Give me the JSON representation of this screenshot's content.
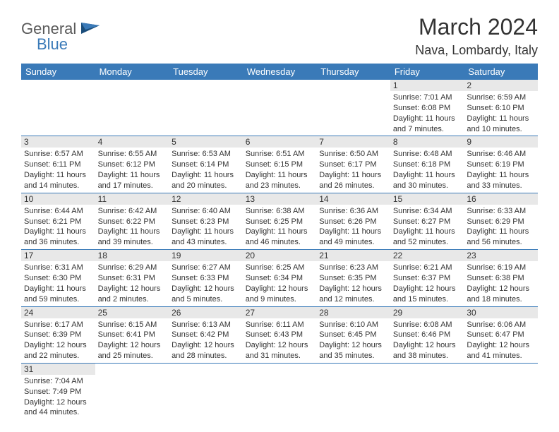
{
  "logo": {
    "general": "General",
    "blue": "Blue"
  },
  "title": "March 2024",
  "location": "Nava, Lombardy, Italy",
  "day_headers": [
    "Sunday",
    "Monday",
    "Tuesday",
    "Wednesday",
    "Thursday",
    "Friday",
    "Saturday"
  ],
  "colors": {
    "header_bg": "#3a7ab8",
    "header_fg": "#ffffff",
    "daynum_bg": "#e8e8e8",
    "border": "#3a7ab8",
    "text": "#333333",
    "logo_gray": "#5a5a5a",
    "logo_blue": "#3a7ab8"
  },
  "weeks": [
    [
      null,
      null,
      null,
      null,
      null,
      {
        "n": "1",
        "sr": "Sunrise: 7:01 AM",
        "ss": "Sunset: 6:08 PM",
        "dl": "Daylight: 11 hours and 7 minutes."
      },
      {
        "n": "2",
        "sr": "Sunrise: 6:59 AM",
        "ss": "Sunset: 6:10 PM",
        "dl": "Daylight: 11 hours and 10 minutes."
      }
    ],
    [
      {
        "n": "3",
        "sr": "Sunrise: 6:57 AM",
        "ss": "Sunset: 6:11 PM",
        "dl": "Daylight: 11 hours and 14 minutes."
      },
      {
        "n": "4",
        "sr": "Sunrise: 6:55 AM",
        "ss": "Sunset: 6:12 PM",
        "dl": "Daylight: 11 hours and 17 minutes."
      },
      {
        "n": "5",
        "sr": "Sunrise: 6:53 AM",
        "ss": "Sunset: 6:14 PM",
        "dl": "Daylight: 11 hours and 20 minutes."
      },
      {
        "n": "6",
        "sr": "Sunrise: 6:51 AM",
        "ss": "Sunset: 6:15 PM",
        "dl": "Daylight: 11 hours and 23 minutes."
      },
      {
        "n": "7",
        "sr": "Sunrise: 6:50 AM",
        "ss": "Sunset: 6:17 PM",
        "dl": "Daylight: 11 hours and 26 minutes."
      },
      {
        "n": "8",
        "sr": "Sunrise: 6:48 AM",
        "ss": "Sunset: 6:18 PM",
        "dl": "Daylight: 11 hours and 30 minutes."
      },
      {
        "n": "9",
        "sr": "Sunrise: 6:46 AM",
        "ss": "Sunset: 6:19 PM",
        "dl": "Daylight: 11 hours and 33 minutes."
      }
    ],
    [
      {
        "n": "10",
        "sr": "Sunrise: 6:44 AM",
        "ss": "Sunset: 6:21 PM",
        "dl": "Daylight: 11 hours and 36 minutes."
      },
      {
        "n": "11",
        "sr": "Sunrise: 6:42 AM",
        "ss": "Sunset: 6:22 PM",
        "dl": "Daylight: 11 hours and 39 minutes."
      },
      {
        "n": "12",
        "sr": "Sunrise: 6:40 AM",
        "ss": "Sunset: 6:23 PM",
        "dl": "Daylight: 11 hours and 43 minutes."
      },
      {
        "n": "13",
        "sr": "Sunrise: 6:38 AM",
        "ss": "Sunset: 6:25 PM",
        "dl": "Daylight: 11 hours and 46 minutes."
      },
      {
        "n": "14",
        "sr": "Sunrise: 6:36 AM",
        "ss": "Sunset: 6:26 PM",
        "dl": "Daylight: 11 hours and 49 minutes."
      },
      {
        "n": "15",
        "sr": "Sunrise: 6:34 AM",
        "ss": "Sunset: 6:27 PM",
        "dl": "Daylight: 11 hours and 52 minutes."
      },
      {
        "n": "16",
        "sr": "Sunrise: 6:33 AM",
        "ss": "Sunset: 6:29 PM",
        "dl": "Daylight: 11 hours and 56 minutes."
      }
    ],
    [
      {
        "n": "17",
        "sr": "Sunrise: 6:31 AM",
        "ss": "Sunset: 6:30 PM",
        "dl": "Daylight: 11 hours and 59 minutes."
      },
      {
        "n": "18",
        "sr": "Sunrise: 6:29 AM",
        "ss": "Sunset: 6:31 PM",
        "dl": "Daylight: 12 hours and 2 minutes."
      },
      {
        "n": "19",
        "sr": "Sunrise: 6:27 AM",
        "ss": "Sunset: 6:33 PM",
        "dl": "Daylight: 12 hours and 5 minutes."
      },
      {
        "n": "20",
        "sr": "Sunrise: 6:25 AM",
        "ss": "Sunset: 6:34 PM",
        "dl": "Daylight: 12 hours and 9 minutes."
      },
      {
        "n": "21",
        "sr": "Sunrise: 6:23 AM",
        "ss": "Sunset: 6:35 PM",
        "dl": "Daylight: 12 hours and 12 minutes."
      },
      {
        "n": "22",
        "sr": "Sunrise: 6:21 AM",
        "ss": "Sunset: 6:37 PM",
        "dl": "Daylight: 12 hours and 15 minutes."
      },
      {
        "n": "23",
        "sr": "Sunrise: 6:19 AM",
        "ss": "Sunset: 6:38 PM",
        "dl": "Daylight: 12 hours and 18 minutes."
      }
    ],
    [
      {
        "n": "24",
        "sr": "Sunrise: 6:17 AM",
        "ss": "Sunset: 6:39 PM",
        "dl": "Daylight: 12 hours and 22 minutes."
      },
      {
        "n": "25",
        "sr": "Sunrise: 6:15 AM",
        "ss": "Sunset: 6:41 PM",
        "dl": "Daylight: 12 hours and 25 minutes."
      },
      {
        "n": "26",
        "sr": "Sunrise: 6:13 AM",
        "ss": "Sunset: 6:42 PM",
        "dl": "Daylight: 12 hours and 28 minutes."
      },
      {
        "n": "27",
        "sr": "Sunrise: 6:11 AM",
        "ss": "Sunset: 6:43 PM",
        "dl": "Daylight: 12 hours and 31 minutes."
      },
      {
        "n": "28",
        "sr": "Sunrise: 6:10 AM",
        "ss": "Sunset: 6:45 PM",
        "dl": "Daylight: 12 hours and 35 minutes."
      },
      {
        "n": "29",
        "sr": "Sunrise: 6:08 AM",
        "ss": "Sunset: 6:46 PM",
        "dl": "Daylight: 12 hours and 38 minutes."
      },
      {
        "n": "30",
        "sr": "Sunrise: 6:06 AM",
        "ss": "Sunset: 6:47 PM",
        "dl": "Daylight: 12 hours and 41 minutes."
      }
    ],
    [
      {
        "n": "31",
        "sr": "Sunrise: 7:04 AM",
        "ss": "Sunset: 7:49 PM",
        "dl": "Daylight: 12 hours and 44 minutes."
      },
      null,
      null,
      null,
      null,
      null,
      null
    ]
  ]
}
